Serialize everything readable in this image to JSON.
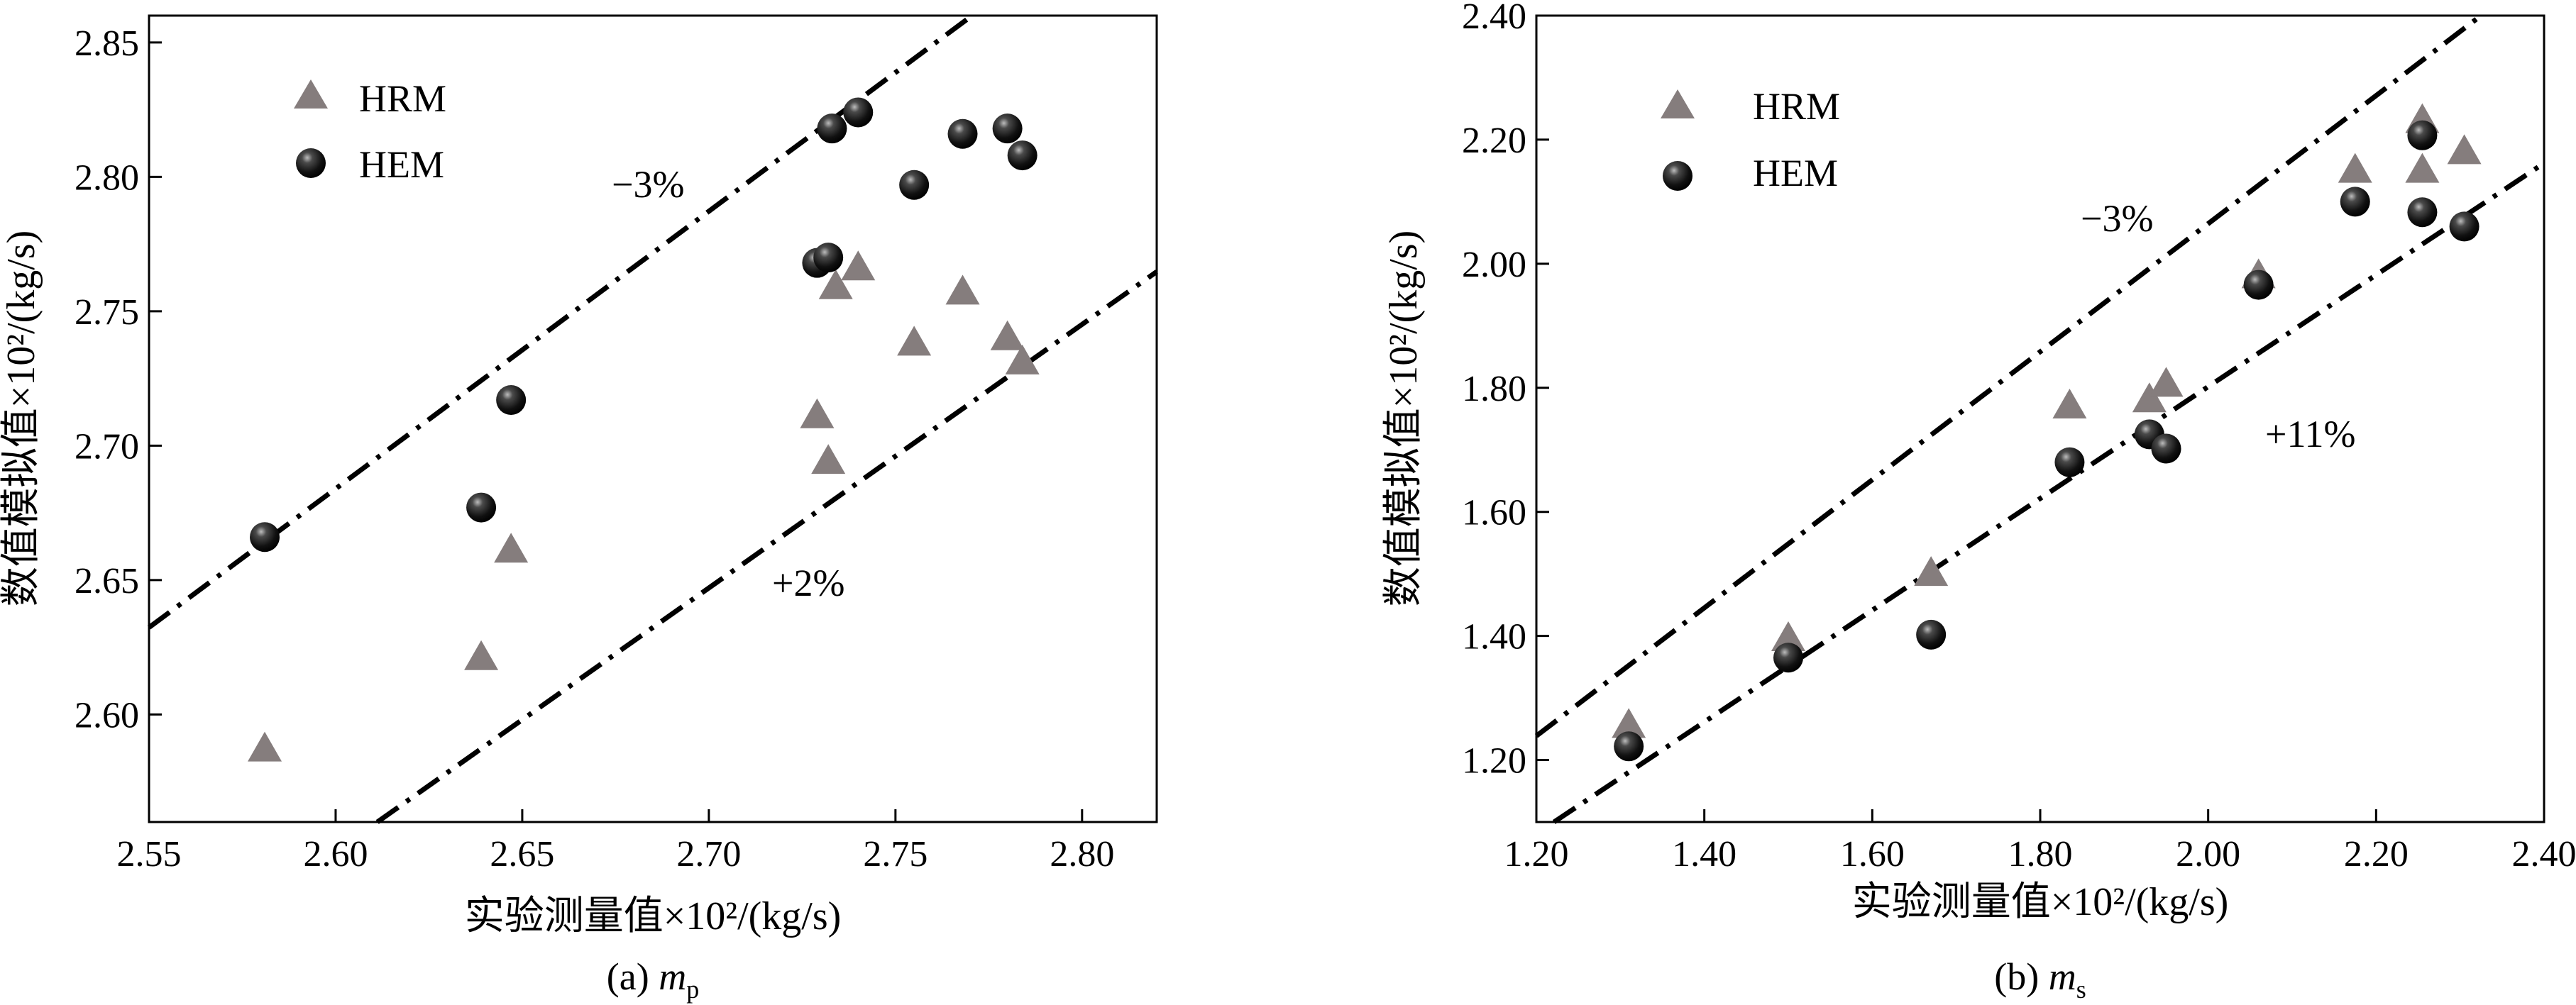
{
  "chart_data": [
    {
      "type": "scatter",
      "xlabel": "实验测量值×10²/(kg/s)",
      "ylabel": "数值模拟值×10²/(kg/s)",
      "caption": "(a) ",
      "caption_var": "m",
      "caption_sub": "p",
      "xlim": [
        2.55,
        2.82
      ],
      "ylim": [
        2.56,
        2.86
      ],
      "x_ticks": [
        2.55,
        2.6,
        2.65,
        2.7,
        2.75,
        2.8
      ],
      "x_tick_labels": [
        "2.55",
        "2.60",
        "2.65",
        "2.70",
        "2.75",
        "2.80"
      ],
      "y_ticks": [
        2.6,
        2.65,
        2.7,
        2.75,
        2.8,
        2.85
      ],
      "y_tick_labels": [
        "2.60",
        "2.65",
        "2.70",
        "2.75",
        "2.80",
        "2.85"
      ],
      "legend_position": "top-left",
      "series": [
        {
          "name": "HRM",
          "marker": "triangle",
          "color": "#857d7d",
          "points": [
            [
              2.581,
              2.587
            ],
            [
              2.639,
              2.621
            ],
            [
              2.647,
              2.661
            ],
            [
              2.729,
              2.711
            ],
            [
              2.732,
              2.694
            ],
            [
              2.734,
              2.759
            ],
            [
              2.74,
              2.766
            ],
            [
              2.755,
              2.738
            ],
            [
              2.768,
              2.757
            ],
            [
              2.78,
              2.74
            ],
            [
              2.784,
              2.731
            ]
          ]
        },
        {
          "name": "HEM",
          "marker": "sphere",
          "color": "#1a1a1a",
          "points": [
            [
              2.581,
              2.666
            ],
            [
              2.639,
              2.677
            ],
            [
              2.647,
              2.717
            ],
            [
              2.729,
              2.768
            ],
            [
              2.732,
              2.77
            ],
            [
              2.733,
              2.818
            ],
            [
              2.74,
              2.824
            ],
            [
              2.755,
              2.797
            ],
            [
              2.768,
              2.816
            ],
            [
              2.78,
              2.818
            ],
            [
              2.784,
              2.808
            ]
          ]
        }
      ],
      "reference_lines": [
        {
          "label": "−3%",
          "factor": 1.0323
        },
        {
          "label": "+2%",
          "factor": 0.9804
        }
      ]
    },
    {
      "type": "scatter",
      "xlabel": "实验测量值×10²/(kg/s)",
      "ylabel": "数值模拟值×10²/(kg/s)",
      "caption": "(b) ",
      "caption_var": "m",
      "caption_sub": "s",
      "xlim": [
        1.2,
        2.4
      ],
      "ylim": [
        1.1,
        2.4
      ],
      "x_ticks": [
        1.2,
        1.4,
        1.6,
        1.8,
        2.0,
        2.2,
        2.4
      ],
      "x_tick_labels": [
        "1.20",
        "1.40",
        "1.60",
        "1.80",
        "2.00",
        "2.20",
        "2.40"
      ],
      "y_ticks": [
        1.2,
        1.4,
        1.6,
        1.8,
        2.0,
        2.2,
        2.4
      ],
      "y_tick_labels": [
        "1.20",
        "1.40",
        "1.60",
        "1.80",
        "2.00",
        "2.20",
        "2.40"
      ],
      "legend_position": "top-left",
      "series": [
        {
          "name": "HRM",
          "marker": "triangle",
          "color": "#857d7d",
          "points": [
            [
              1.31,
              1.255
            ],
            [
              1.5,
              1.395
            ],
            [
              1.67,
              1.5
            ],
            [
              1.835,
              1.77
            ],
            [
              1.93,
              1.78
            ],
            [
              1.95,
              1.805
            ],
            [
              2.06,
              1.98
            ],
            [
              2.175,
              2.15
            ],
            [
              2.255,
              2.23
            ],
            [
              2.255,
              2.15
            ],
            [
              2.305,
              2.18
            ]
          ]
        },
        {
          "name": "HEM",
          "marker": "sphere",
          "color": "#1a1a1a",
          "points": [
            [
              1.31,
              1.222
            ],
            [
              1.5,
              1.365
            ],
            [
              1.67,
              1.402
            ],
            [
              1.835,
              1.68
            ],
            [
              1.93,
              1.725
            ],
            [
              1.95,
              1.702
            ],
            [
              2.06,
              1.966
            ],
            [
              2.175,
              2.1
            ],
            [
              2.255,
              2.083
            ],
            [
              2.255,
              2.207
            ],
            [
              2.305,
              2.06
            ]
          ]
        }
      ],
      "reference_lines": [
        {
          "label": "−3%",
          "factor": 1.0323
        },
        {
          "label": "+11%",
          "factor": 0.9009
        }
      ]
    }
  ]
}
